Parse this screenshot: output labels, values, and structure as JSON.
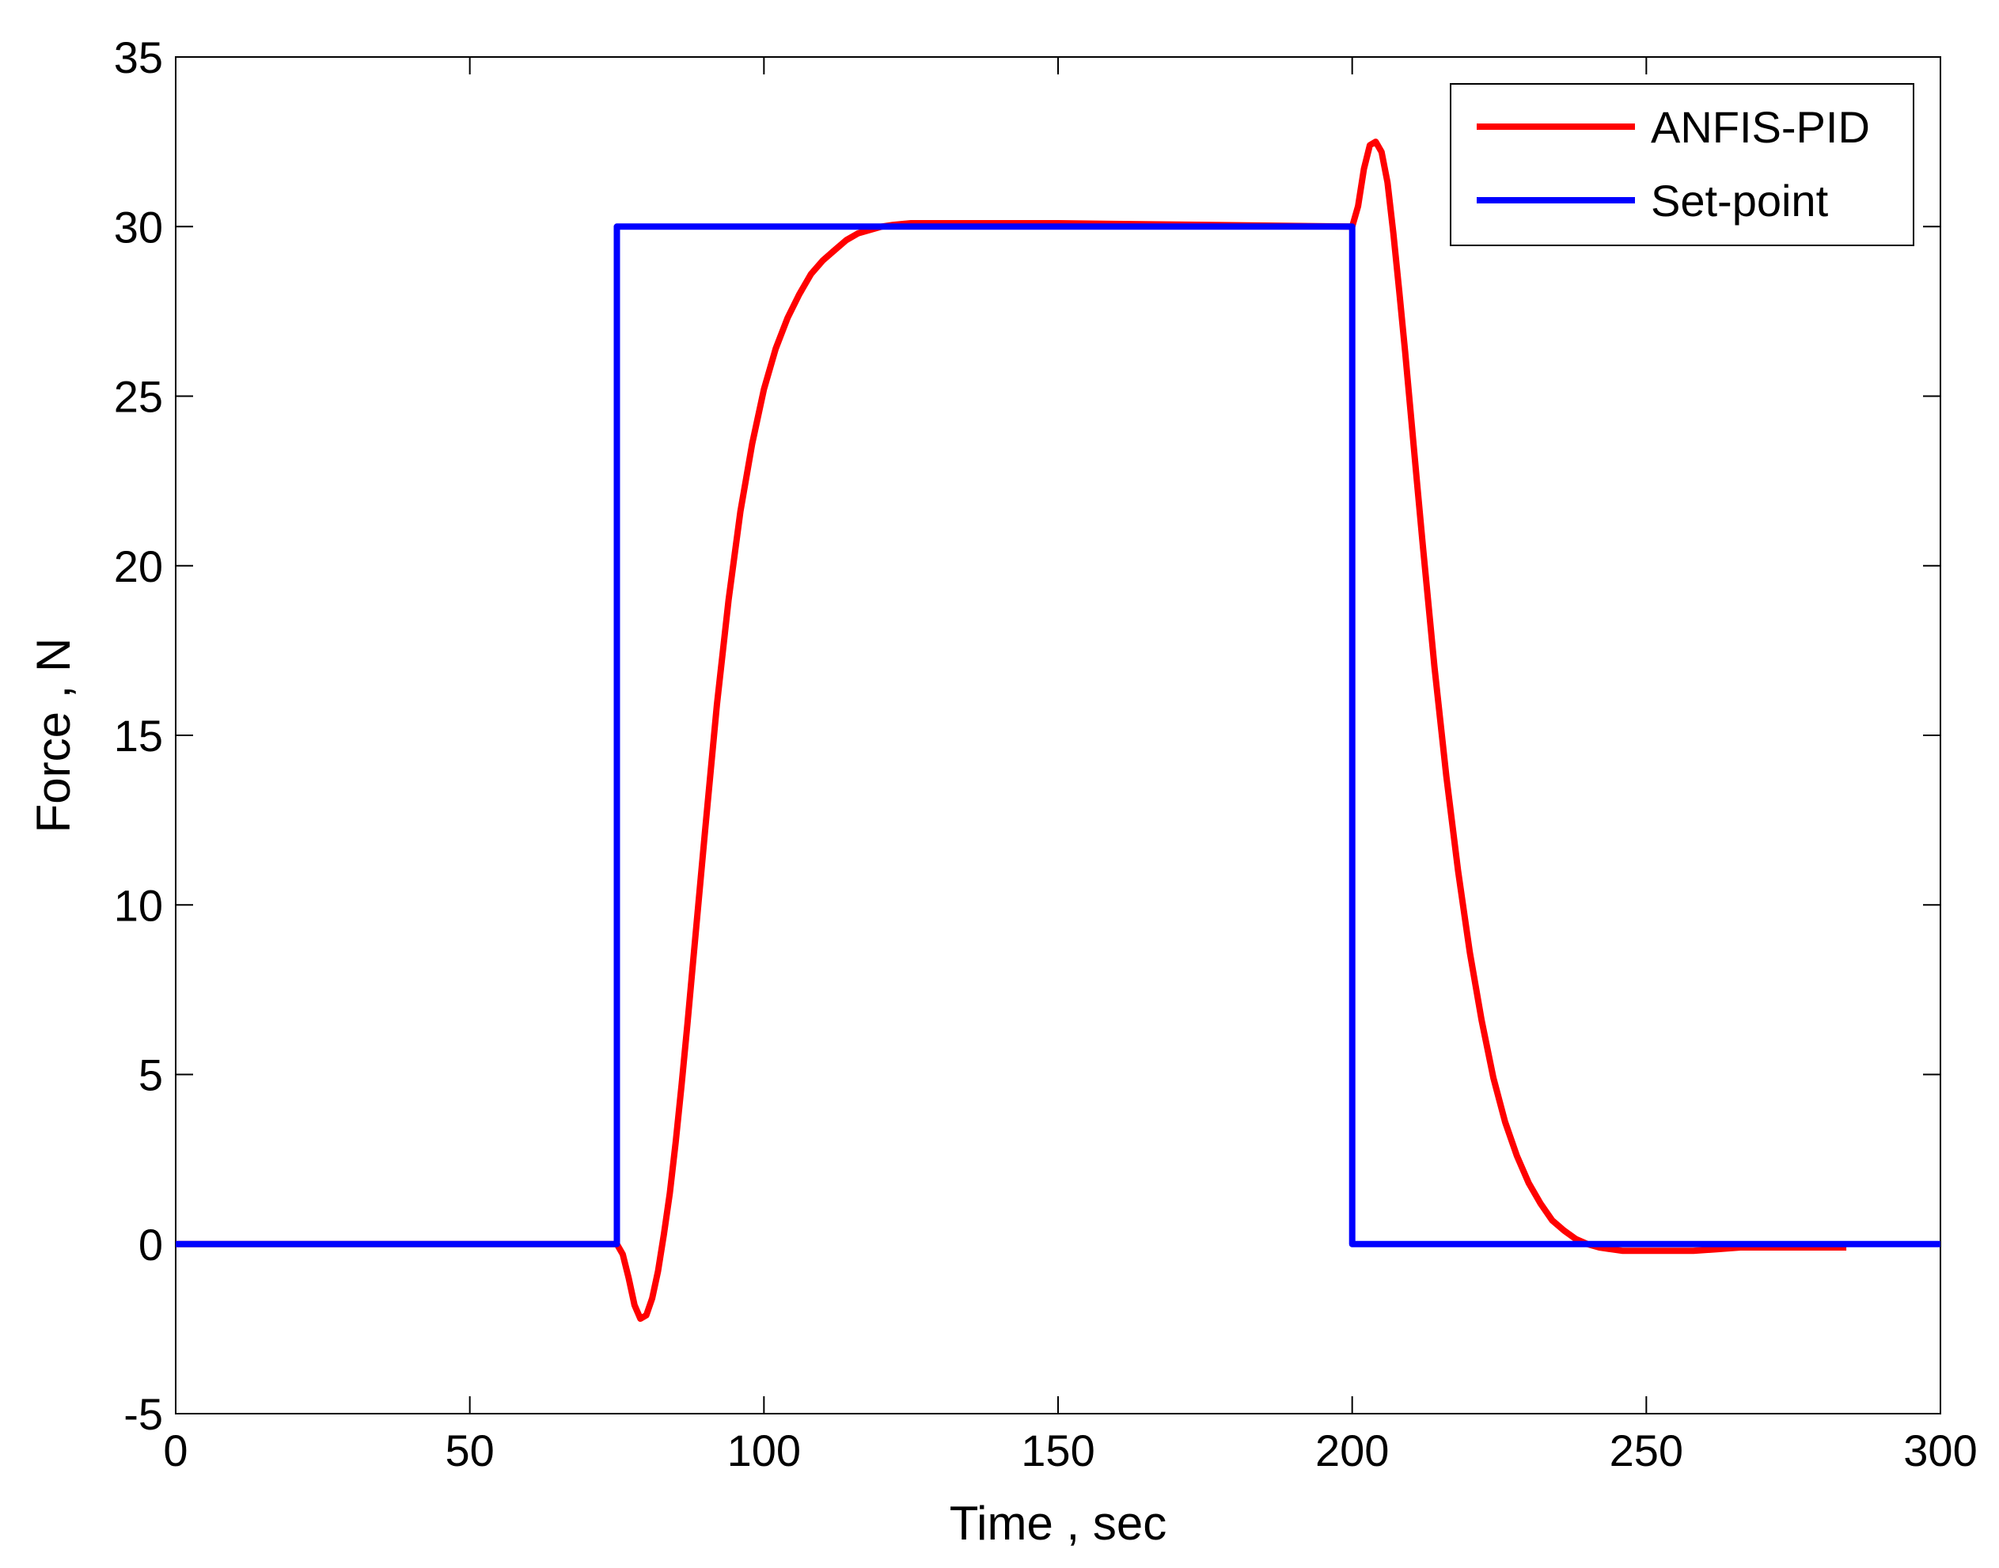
{
  "chart_data": {
    "type": "line",
    "title": "",
    "xlabel": "Time , sec",
    "ylabel": "Force , N",
    "xlim": [
      0,
      300
    ],
    "ylim": [
      -5,
      35
    ],
    "xticks": [
      0,
      50,
      100,
      150,
      200,
      250,
      300
    ],
    "yticks": [
      -5,
      0,
      5,
      10,
      15,
      20,
      25,
      30,
      35
    ],
    "grid": false,
    "legend_position": "top-right",
    "series": [
      {
        "name": "ANFIS-PID",
        "color": "#ff0000",
        "x": [
          0,
          75,
          76,
          77,
          78,
          79,
          80,
          81,
          82,
          83,
          84,
          85,
          86,
          87,
          88,
          90,
          92,
          94,
          96,
          98,
          100,
          102,
          104,
          106,
          108,
          110,
          112,
          114,
          116,
          118,
          120,
          122,
          125,
          128,
          132,
          136,
          140,
          145,
          150,
          200,
          201,
          202,
          203,
          204,
          205,
          206,
          207,
          208,
          209,
          210,
          211,
          212,
          214,
          216,
          218,
          220,
          222,
          224,
          226,
          228,
          230,
          232,
          234,
          236,
          238,
          240,
          242,
          244,
          246,
          248,
          250,
          252,
          255,
          258,
          262,
          266,
          270,
          275,
          280,
          284
        ],
        "y": [
          0,
          0,
          -0.3,
          -1.0,
          -1.8,
          -2.2,
          -2.1,
          -1.6,
          -0.8,
          0.3,
          1.5,
          3.0,
          4.7,
          6.5,
          8.4,
          12.2,
          15.9,
          19.0,
          21.6,
          23.6,
          25.2,
          26.4,
          27.3,
          28.0,
          28.6,
          29.0,
          29.3,
          29.6,
          29.8,
          29.9,
          30.0,
          30.05,
          30.1,
          30.1,
          30.1,
          30.1,
          30.1,
          30.1,
          30.1,
          30.0,
          30.6,
          31.7,
          32.4,
          32.5,
          32.2,
          31.3,
          29.8,
          28.1,
          26.3,
          24.4,
          22.5,
          20.6,
          17.0,
          13.8,
          11.0,
          8.6,
          6.6,
          4.9,
          3.6,
          2.6,
          1.8,
          1.2,
          0.7,
          0.4,
          0.15,
          0.0,
          -0.1,
          -0.15,
          -0.2,
          -0.2,
          -0.2,
          -0.2,
          -0.2,
          -0.2,
          -0.15,
          -0.1,
          -0.1,
          -0.1,
          -0.1,
          -0.1
        ]
      },
      {
        "name": "Set-point",
        "color": "#0000ff",
        "x": [
          0,
          75,
          75,
          200,
          200,
          300
        ],
        "y": [
          0,
          0,
          30,
          30,
          0,
          0
        ]
      }
    ]
  }
}
